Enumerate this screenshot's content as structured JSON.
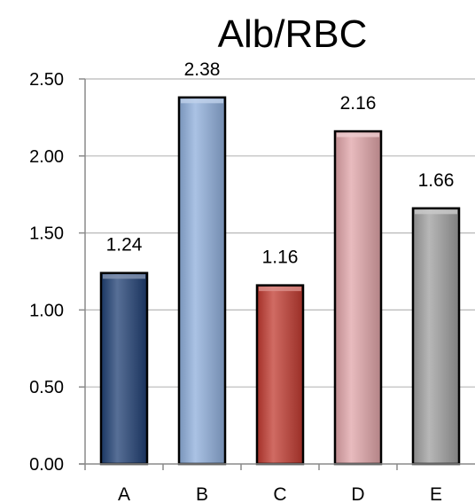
{
  "chart_data": {
    "type": "bar",
    "title": "Alb/RBC",
    "categories": [
      "A",
      "B",
      "C",
      "D",
      "E"
    ],
    "values": [
      1.24,
      2.38,
      1.16,
      2.16,
      1.66
    ],
    "data_labels": [
      "1.24",
      "2.38",
      "1.16",
      "2.16",
      "1.66"
    ],
    "colors": [
      "#1f3f73",
      "#8eaedb",
      "#c0392f",
      "#e0a4a8",
      "#9f9f9f"
    ],
    "ylim": [
      0,
      2.5
    ],
    "yticks": [
      "0.00",
      "0.50",
      "1.00",
      "1.50",
      "2.00",
      "2.50"
    ],
    "ytick_values": [
      0,
      0.5,
      1,
      1.5,
      2,
      2.5
    ],
    "grid": true,
    "xlabel": "",
    "ylabel": ""
  }
}
